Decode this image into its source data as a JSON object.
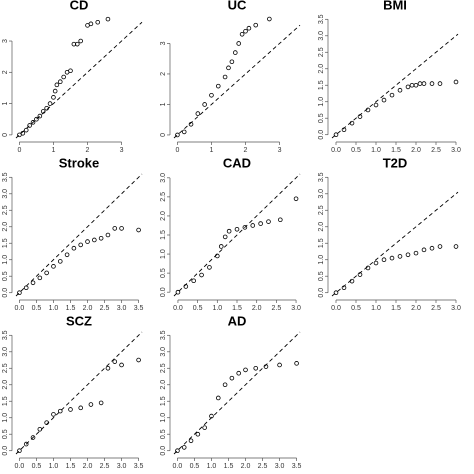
{
  "chart_data": [
    {
      "type": "scatter",
      "title": "CD",
      "color": "#000000",
      "x": [
        0,
        0.1,
        0.2,
        0.3,
        0.4,
        0.5,
        0.6,
        0.7,
        0.8,
        0.9,
        1.0,
        1.05,
        1.1,
        1.2,
        1.3,
        1.4,
        1.5,
        1.6,
        1.7,
        1.8,
        2.0,
        2.1,
        2.3,
        2.6
      ],
      "values": [
        0,
        0.05,
        0.15,
        0.3,
        0.4,
        0.5,
        0.6,
        0.75,
        0.85,
        1.0,
        1.2,
        1.4,
        1.6,
        1.7,
        1.85,
        2.0,
        2.05,
        2.9,
        2.9,
        3.0,
        3.5,
        3.55,
        3.6,
        3.7
      ],
      "xlim": [
        -0.1,
        3.6
      ],
      "ylim": [
        -0.1,
        3.8
      ],
      "xticks": [
        0,
        1,
        2,
        3
      ],
      "yticks": [
        0,
        1,
        2,
        3
      ]
    },
    {
      "type": "scatter",
      "title": "UC",
      "color": "#000000",
      "x": [
        0,
        0.2,
        0.4,
        0.6,
        0.8,
        1.0,
        1.2,
        1.4,
        1.5,
        1.6,
        1.7,
        1.8,
        1.9,
        2.0,
        2.1,
        2.3,
        2.7
      ],
      "values": [
        0,
        0.1,
        0.35,
        0.7,
        1.0,
        1.3,
        1.6,
        1.9,
        2.2,
        2.4,
        2.7,
        3.0,
        3.3,
        3.4,
        3.5,
        3.6,
        3.8
      ],
      "xlim": [
        -0.1,
        3.6
      ],
      "ylim": [
        -0.1,
        3.9
      ],
      "xticks": [
        0,
        1,
        2,
        3
      ],
      "yticks": [
        0,
        1,
        2,
        3
      ]
    },
    {
      "type": "scatter",
      "title": "BMI",
      "color": "#000000",
      "x": [
        0,
        0.2,
        0.4,
        0.6,
        0.8,
        1.0,
        1.2,
        1.4,
        1.6,
        1.8,
        1.9,
        2.0,
        2.1,
        2.2,
        2.4,
        2.6,
        3.0
      ],
      "values": [
        0,
        0.15,
        0.35,
        0.55,
        0.75,
        0.9,
        1.05,
        1.2,
        1.35,
        1.45,
        1.5,
        1.5,
        1.55,
        1.55,
        1.55,
        1.55,
        1.6
      ],
      "xlim": [
        -0.1,
        3.05
      ],
      "ylim": [
        -0.1,
        3.6
      ],
      "xticks": [
        {
          "value": 0,
          "label": "0.0"
        },
        {
          "value": 0.5,
          "label": "0.5"
        },
        {
          "value": 1,
          "label": "1.0"
        },
        {
          "value": 1.5,
          "label": "1.5"
        },
        {
          "value": 2,
          "label": "2.0"
        },
        {
          "value": 2.5,
          "label": "2.5"
        },
        {
          "value": 3,
          "label": "3.0"
        }
      ],
      "yticks": [
        {
          "value": 0,
          "label": "0.0"
        },
        {
          "value": 0.5,
          "label": "0.5"
        },
        {
          "value": 1,
          "label": "1.0"
        },
        {
          "value": 1.5,
          "label": "1.5"
        },
        {
          "value": 2,
          "label": "2.0"
        },
        {
          "value": 2.5,
          "label": "2.5"
        },
        {
          "value": 3,
          "label": "3.0"
        },
        {
          "value": 3.5,
          "label": "3.5"
        }
      ]
    },
    {
      "type": "scatter",
      "title": "Stroke",
      "color": "#000000",
      "x": [
        0,
        0.2,
        0.4,
        0.6,
        0.8,
        1.0,
        1.2,
        1.4,
        1.6,
        1.8,
        2.0,
        2.2,
        2.4,
        2.6,
        2.8,
        3.0,
        3.5
      ],
      "values": [
        0,
        0.15,
        0.3,
        0.45,
        0.6,
        0.8,
        0.95,
        1.15,
        1.35,
        1.45,
        1.55,
        1.6,
        1.65,
        1.75,
        1.95,
        1.95,
        1.9
      ],
      "xlim": [
        -0.1,
        3.6
      ],
      "ylim": [
        -0.1,
        3.6
      ],
      "xticks": [
        {
          "value": 0,
          "label": "0.0"
        },
        {
          "value": 0.5,
          "label": "0.5"
        },
        {
          "value": 1,
          "label": "1.0"
        },
        {
          "value": 1.5,
          "label": "1.5"
        },
        {
          "value": 2,
          "label": "2.0"
        },
        {
          "value": 2.5,
          "label": "2.5"
        },
        {
          "value": 3,
          "label": "3.0"
        },
        {
          "value": 3.5,
          "label": "3.5"
        }
      ],
      "yticks": [
        {
          "value": 0,
          "label": "0.0"
        },
        {
          "value": 0.5,
          "label": "0.5"
        },
        {
          "value": 1,
          "label": "1.0"
        },
        {
          "value": 1.5,
          "label": "1.5"
        },
        {
          "value": 2,
          "label": "2.0"
        },
        {
          "value": 2.5,
          "label": "2.5"
        },
        {
          "value": 3,
          "label": "3.0"
        },
        {
          "value": 3.5,
          "label": "3.5"
        }
      ]
    },
    {
      "type": "scatter",
      "title": "CAD",
      "color": "#000000",
      "x": [
        0,
        0.2,
        0.4,
        0.6,
        0.8,
        1.0,
        1.1,
        1.2,
        1.3,
        1.5,
        1.7,
        1.9,
        2.1,
        2.3,
        2.6,
        3.0
      ],
      "values": [
        0,
        0.15,
        0.3,
        0.45,
        0.65,
        0.95,
        1.2,
        1.45,
        1.6,
        1.65,
        1.7,
        1.75,
        1.8,
        1.85,
        1.9,
        2.45
      ],
      "xlim": [
        -0.1,
        3.1
      ],
      "ylim": [
        -0.1,
        3.1
      ],
      "xticks": [
        {
          "value": 0,
          "label": "0.0"
        },
        {
          "value": 0.5,
          "label": "0.5"
        },
        {
          "value": 1,
          "label": "1.0"
        },
        {
          "value": 1.5,
          "label": "1.5"
        },
        {
          "value": 2,
          "label": "2.0"
        },
        {
          "value": 2.5,
          "label": "2.5"
        },
        {
          "value": 3,
          "label": "3.0"
        }
      ],
      "yticks": [
        {
          "value": 0,
          "label": "0.0"
        },
        {
          "value": 0.5,
          "label": "0.5"
        },
        {
          "value": 1,
          "label": "1.0"
        },
        {
          "value": 1.5,
          "label": "1.5"
        },
        {
          "value": 2,
          "label": "2.0"
        },
        {
          "value": 2.5,
          "label": "2.5"
        },
        {
          "value": 3,
          "label": "3.0"
        }
      ]
    },
    {
      "type": "scatter",
      "title": "T2D",
      "color": "#000000",
      "x": [
        0,
        0.2,
        0.4,
        0.6,
        0.8,
        1.0,
        1.2,
        1.4,
        1.6,
        1.8,
        2.0,
        2.2,
        2.4,
        2.6,
        3.0
      ],
      "values": [
        0,
        0.15,
        0.35,
        0.55,
        0.75,
        0.9,
        1.0,
        1.05,
        1.1,
        1.15,
        1.2,
        1.3,
        1.35,
        1.4,
        1.4
      ],
      "xlim": [
        -0.1,
        3.05
      ],
      "ylim": [
        -0.1,
        3.6
      ],
      "xticks": [
        {
          "value": 0,
          "label": "0.0"
        },
        {
          "value": 0.5,
          "label": "0.5"
        },
        {
          "value": 1,
          "label": "1.0"
        },
        {
          "value": 1.5,
          "label": "1.5"
        },
        {
          "value": 2,
          "label": "2.0"
        },
        {
          "value": 2.5,
          "label": "2.5"
        },
        {
          "value": 3,
          "label": "3.0"
        }
      ],
      "yticks": [
        {
          "value": 0,
          "label": "0.0"
        },
        {
          "value": 0.5,
          "label": "0.5"
        },
        {
          "value": 1,
          "label": "1.0"
        },
        {
          "value": 1.5,
          "label": "1.5"
        },
        {
          "value": 2,
          "label": "2.0"
        },
        {
          "value": 2.5,
          "label": "2.5"
        },
        {
          "value": 3,
          "label": "3.0"
        },
        {
          "value": 3.5,
          "label": "3.5"
        }
      ]
    },
    {
      "type": "scatter",
      "title": "SCZ",
      "color": "#000000",
      "x": [
        0,
        0.2,
        0.4,
        0.6,
        0.8,
        1.0,
        1.2,
        1.5,
        1.8,
        2.1,
        2.4,
        2.6,
        2.8,
        3.0,
        3.5
      ],
      "values": [
        0,
        0.2,
        0.4,
        0.65,
        0.85,
        1.1,
        1.2,
        1.25,
        1.3,
        1.4,
        1.45,
        2.5,
        2.7,
        2.6,
        2.75
      ],
      "xlim": [
        -0.1,
        3.6
      ],
      "ylim": [
        -0.1,
        3.6
      ],
      "xticks": [
        {
          "value": 0,
          "label": "0.0"
        },
        {
          "value": 0.5,
          "label": "0.5"
        },
        {
          "value": 1,
          "label": "1.0"
        },
        {
          "value": 1.5,
          "label": "1.5"
        },
        {
          "value": 2,
          "label": "2.0"
        },
        {
          "value": 2.5,
          "label": "2.5"
        },
        {
          "value": 3,
          "label": "3.0"
        },
        {
          "value": 3.5,
          "label": "3.5"
        }
      ],
      "yticks": [
        {
          "value": 0,
          "label": "0.0"
        },
        {
          "value": 0.5,
          "label": "0.5"
        },
        {
          "value": 1,
          "label": "1.0"
        },
        {
          "value": 1.5,
          "label": "1.5"
        },
        {
          "value": 2,
          "label": "2.0"
        },
        {
          "value": 2.5,
          "label": "2.5"
        },
        {
          "value": 3,
          "label": "3.0"
        },
        {
          "value": 3.5,
          "label": "3.5"
        }
      ]
    },
    {
      "type": "scatter",
      "title": "AD",
      "color": "#000000",
      "x": [
        0,
        0.2,
        0.4,
        0.6,
        0.8,
        1.0,
        1.2,
        1.4,
        1.6,
        1.8,
        2.0,
        2.3,
        2.6,
        3.0,
        3.5
      ],
      "values": [
        0,
        0.1,
        0.3,
        0.5,
        0.7,
        1.05,
        1.6,
        2.0,
        2.2,
        2.35,
        2.45,
        2.5,
        2.55,
        2.6,
        2.65
      ],
      "xlim": [
        -0.1,
        3.6
      ],
      "ylim": [
        -0.1,
        3.6
      ],
      "xticks": [
        {
          "value": 0,
          "label": "0.0"
        },
        {
          "value": 0.5,
          "label": "0.5"
        },
        {
          "value": 1,
          "label": "1.0"
        },
        {
          "value": 1.5,
          "label": "1.5"
        },
        {
          "value": 2,
          "label": "2.0"
        },
        {
          "value": 2.5,
          "label": "2.5"
        },
        {
          "value": 3,
          "label": "3.0"
        },
        {
          "value": 3.5,
          "label": "3.5"
        }
      ],
      "yticks": [
        {
          "value": 0,
          "label": "0.0"
        },
        {
          "value": 0.5,
          "label": "0.5"
        },
        {
          "value": 1,
          "label": "1.0"
        },
        {
          "value": 1.5,
          "label": "1.5"
        },
        {
          "value": 2,
          "label": "2.0"
        },
        {
          "value": 2.5,
          "label": "2.5"
        },
        {
          "value": 3,
          "label": "3.0"
        },
        {
          "value": 3.5,
          "label": "3.5"
        }
      ]
    }
  ]
}
